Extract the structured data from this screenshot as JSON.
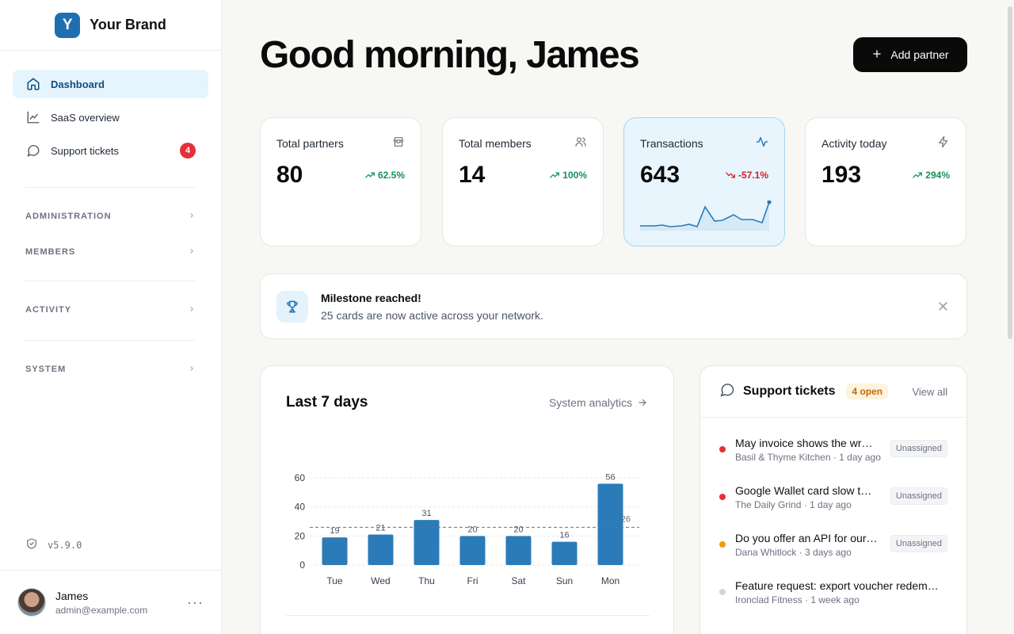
{
  "brand": {
    "logo_letter": "Y",
    "name": "Your Brand",
    "color": "#1f6fb0"
  },
  "nav": {
    "items": [
      {
        "label": "Dashboard",
        "icon": "home-icon",
        "active": true
      },
      {
        "label": "SaaS overview",
        "icon": "chart-line-icon"
      },
      {
        "label": "Support tickets",
        "icon": "message-circle-icon",
        "badge": "4"
      }
    ],
    "sections": [
      "ADMINISTRATION",
      "MEMBERS",
      "ACTIVITY",
      "SYSTEM"
    ]
  },
  "version": "v5.9.0",
  "user": {
    "name": "James",
    "email": "admin@example.com"
  },
  "header": {
    "greeting": "Good morning, James",
    "add_button": "Add partner"
  },
  "stats": [
    {
      "label": "Total partners",
      "value": "80",
      "delta": "62.5%",
      "trend": "up",
      "icon": "store-icon"
    },
    {
      "label": "Total members",
      "value": "14",
      "delta": "100%",
      "trend": "up",
      "icon": "users-icon"
    },
    {
      "label": "Transactions",
      "value": "643",
      "delta": "-57.1%",
      "trend": "down",
      "icon": "activity-icon"
    },
    {
      "label": "Activity today",
      "value": "193",
      "delta": "294%",
      "trend": "up",
      "icon": "zap-icon"
    }
  ],
  "milestone": {
    "title": "Milestone reached!",
    "text": "25 cards are now active across your network."
  },
  "chart": {
    "title": "Last 7 days",
    "link": "System analytics"
  },
  "chart_data": {
    "type": "bar",
    "categories": [
      "Tue",
      "Wed",
      "Thu",
      "Fri",
      "Sat",
      "Sun",
      "Mon"
    ],
    "values": [
      19,
      21,
      31,
      20,
      20,
      16,
      56
    ],
    "ylim": [
      0,
      60
    ],
    "yticks": [
      0,
      20,
      40,
      60
    ],
    "average_line": 26,
    "average_label": "26",
    "grid": true,
    "bar_color": "#2b7bb9"
  },
  "tickets": {
    "title": "Support tickets",
    "badge": "4 open",
    "view_all": "View all",
    "items": [
      {
        "subject": "May invoice shows the wr…",
        "meta": "Basil & Thyme Kitchen · 1 day ago",
        "status": "Unassigned",
        "dot": "#e5303a"
      },
      {
        "subject": "Google Wallet card slow t…",
        "meta": "The Daily Grind · 1 day ago",
        "status": "Unassigned",
        "dot": "#e5303a"
      },
      {
        "subject": "Do you offer an API for our…",
        "meta": "Dana Whitlock · 3 days ago",
        "status": "Unassigned",
        "dot": "#f29b11"
      },
      {
        "subject": "Feature request: export voucher redem…",
        "meta": "Ironclad Fitness · 1 week ago",
        "status": "",
        "dot": "#d1d5db"
      }
    ]
  }
}
